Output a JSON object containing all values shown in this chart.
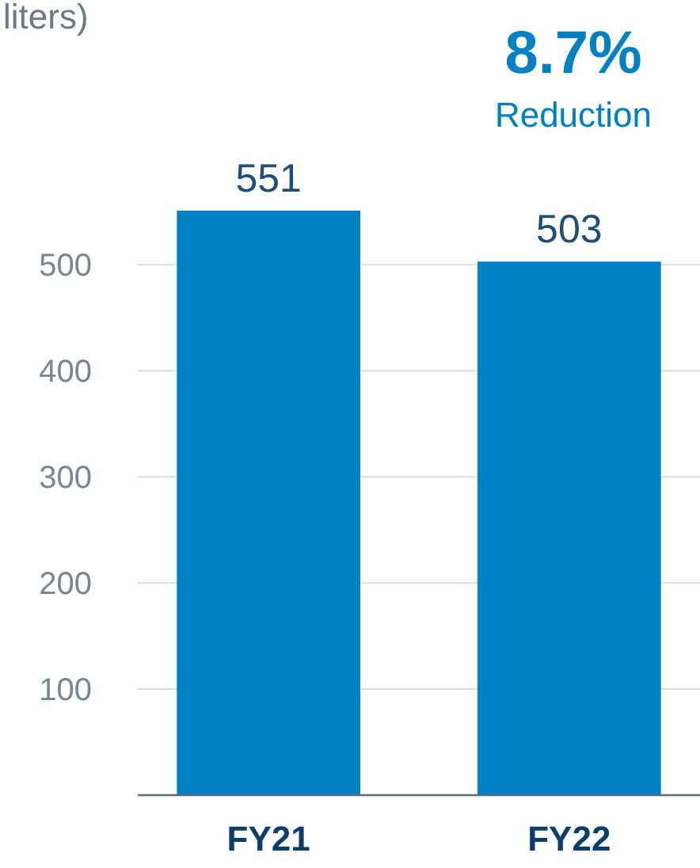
{
  "chart_data": {
    "type": "bar",
    "title": "liters)",
    "categories": [
      "FY21",
      "FY22"
    ],
    "values": [
      551,
      503
    ],
    "color": "#0081c6",
    "ylim": [
      0,
      551
    ],
    "yticks": [
      100,
      200,
      300,
      400,
      500
    ],
    "grid": "y",
    "data_labels": true,
    "annotations": [
      "8.7%",
      "Reduction"
    ]
  }
}
